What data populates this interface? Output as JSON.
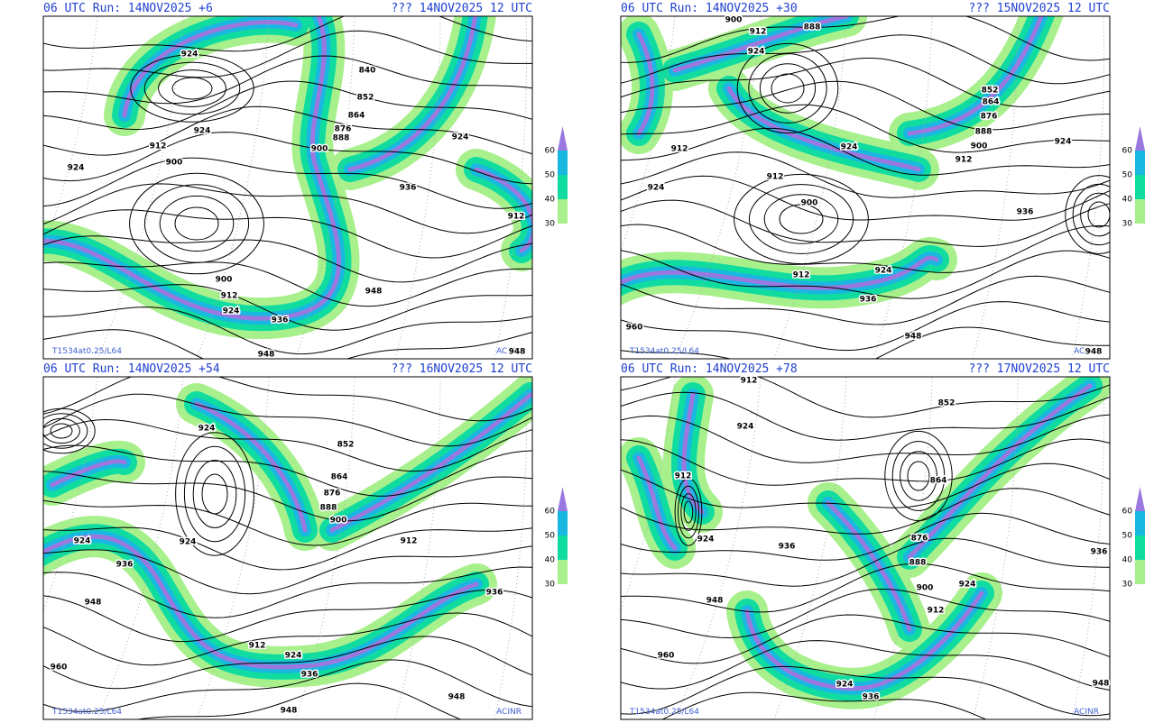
{
  "legend": {
    "labels": [
      "60",
      "50",
      "40",
      "30"
    ]
  },
  "panels": [
    {
      "header_left": "06 UTC Run: 14NOV2025 +6",
      "header_right": "??? 14NOV2025 12 UTC",
      "footer_left": "T1534at0.25/L64",
      "footer_right": "ACINR",
      "contour_labels": [
        "924",
        "840",
        "852",
        "864",
        "876",
        "888",
        "900",
        "924",
        "912",
        "924",
        "900",
        "924",
        "936",
        "912",
        "900",
        "912",
        "924",
        "936",
        "948",
        "948",
        "948"
      ]
    },
    {
      "header_left": "06 UTC Run: 14NOV2025 +30",
      "header_right": "??? 15NOV2025 12 UTC",
      "footer_left": "T1534at0.25/L64",
      "footer_right": "ACINR",
      "contour_labels": [
        "900",
        "912",
        "888",
        "924",
        "852",
        "864",
        "876",
        "888",
        "900",
        "912",
        "924",
        "912",
        "924",
        "912",
        "900",
        "924",
        "936",
        "912",
        "924",
        "936",
        "960",
        "948",
        "948"
      ]
    },
    {
      "header_left": "06 UTC Run: 14NOV2025 +54",
      "header_right": "??? 16NOV2025 12 UTC",
      "footer_left": "T1534at0.25/L64",
      "footer_right": "ACINR",
      "contour_labels": [
        "924",
        "852",
        "864",
        "876",
        "888",
        "900",
        "924",
        "924",
        "912",
        "936",
        "936",
        "948",
        "912",
        "924",
        "936",
        "960",
        "948",
        "948"
      ]
    },
    {
      "header_left": "06 UTC Run: 14NOV2025 +78",
      "header_right": "??? 17NOV2025 12 UTC",
      "footer_left": "T1534at0.25/L64",
      "footer_right": "ACINR",
      "contour_labels": [
        "912",
        "852",
        "924",
        "912",
        "864",
        "924",
        "876",
        "936",
        "936",
        "888",
        "900",
        "924",
        "912",
        "948",
        "960",
        "924",
        "936",
        "948"
      ]
    }
  ]
}
